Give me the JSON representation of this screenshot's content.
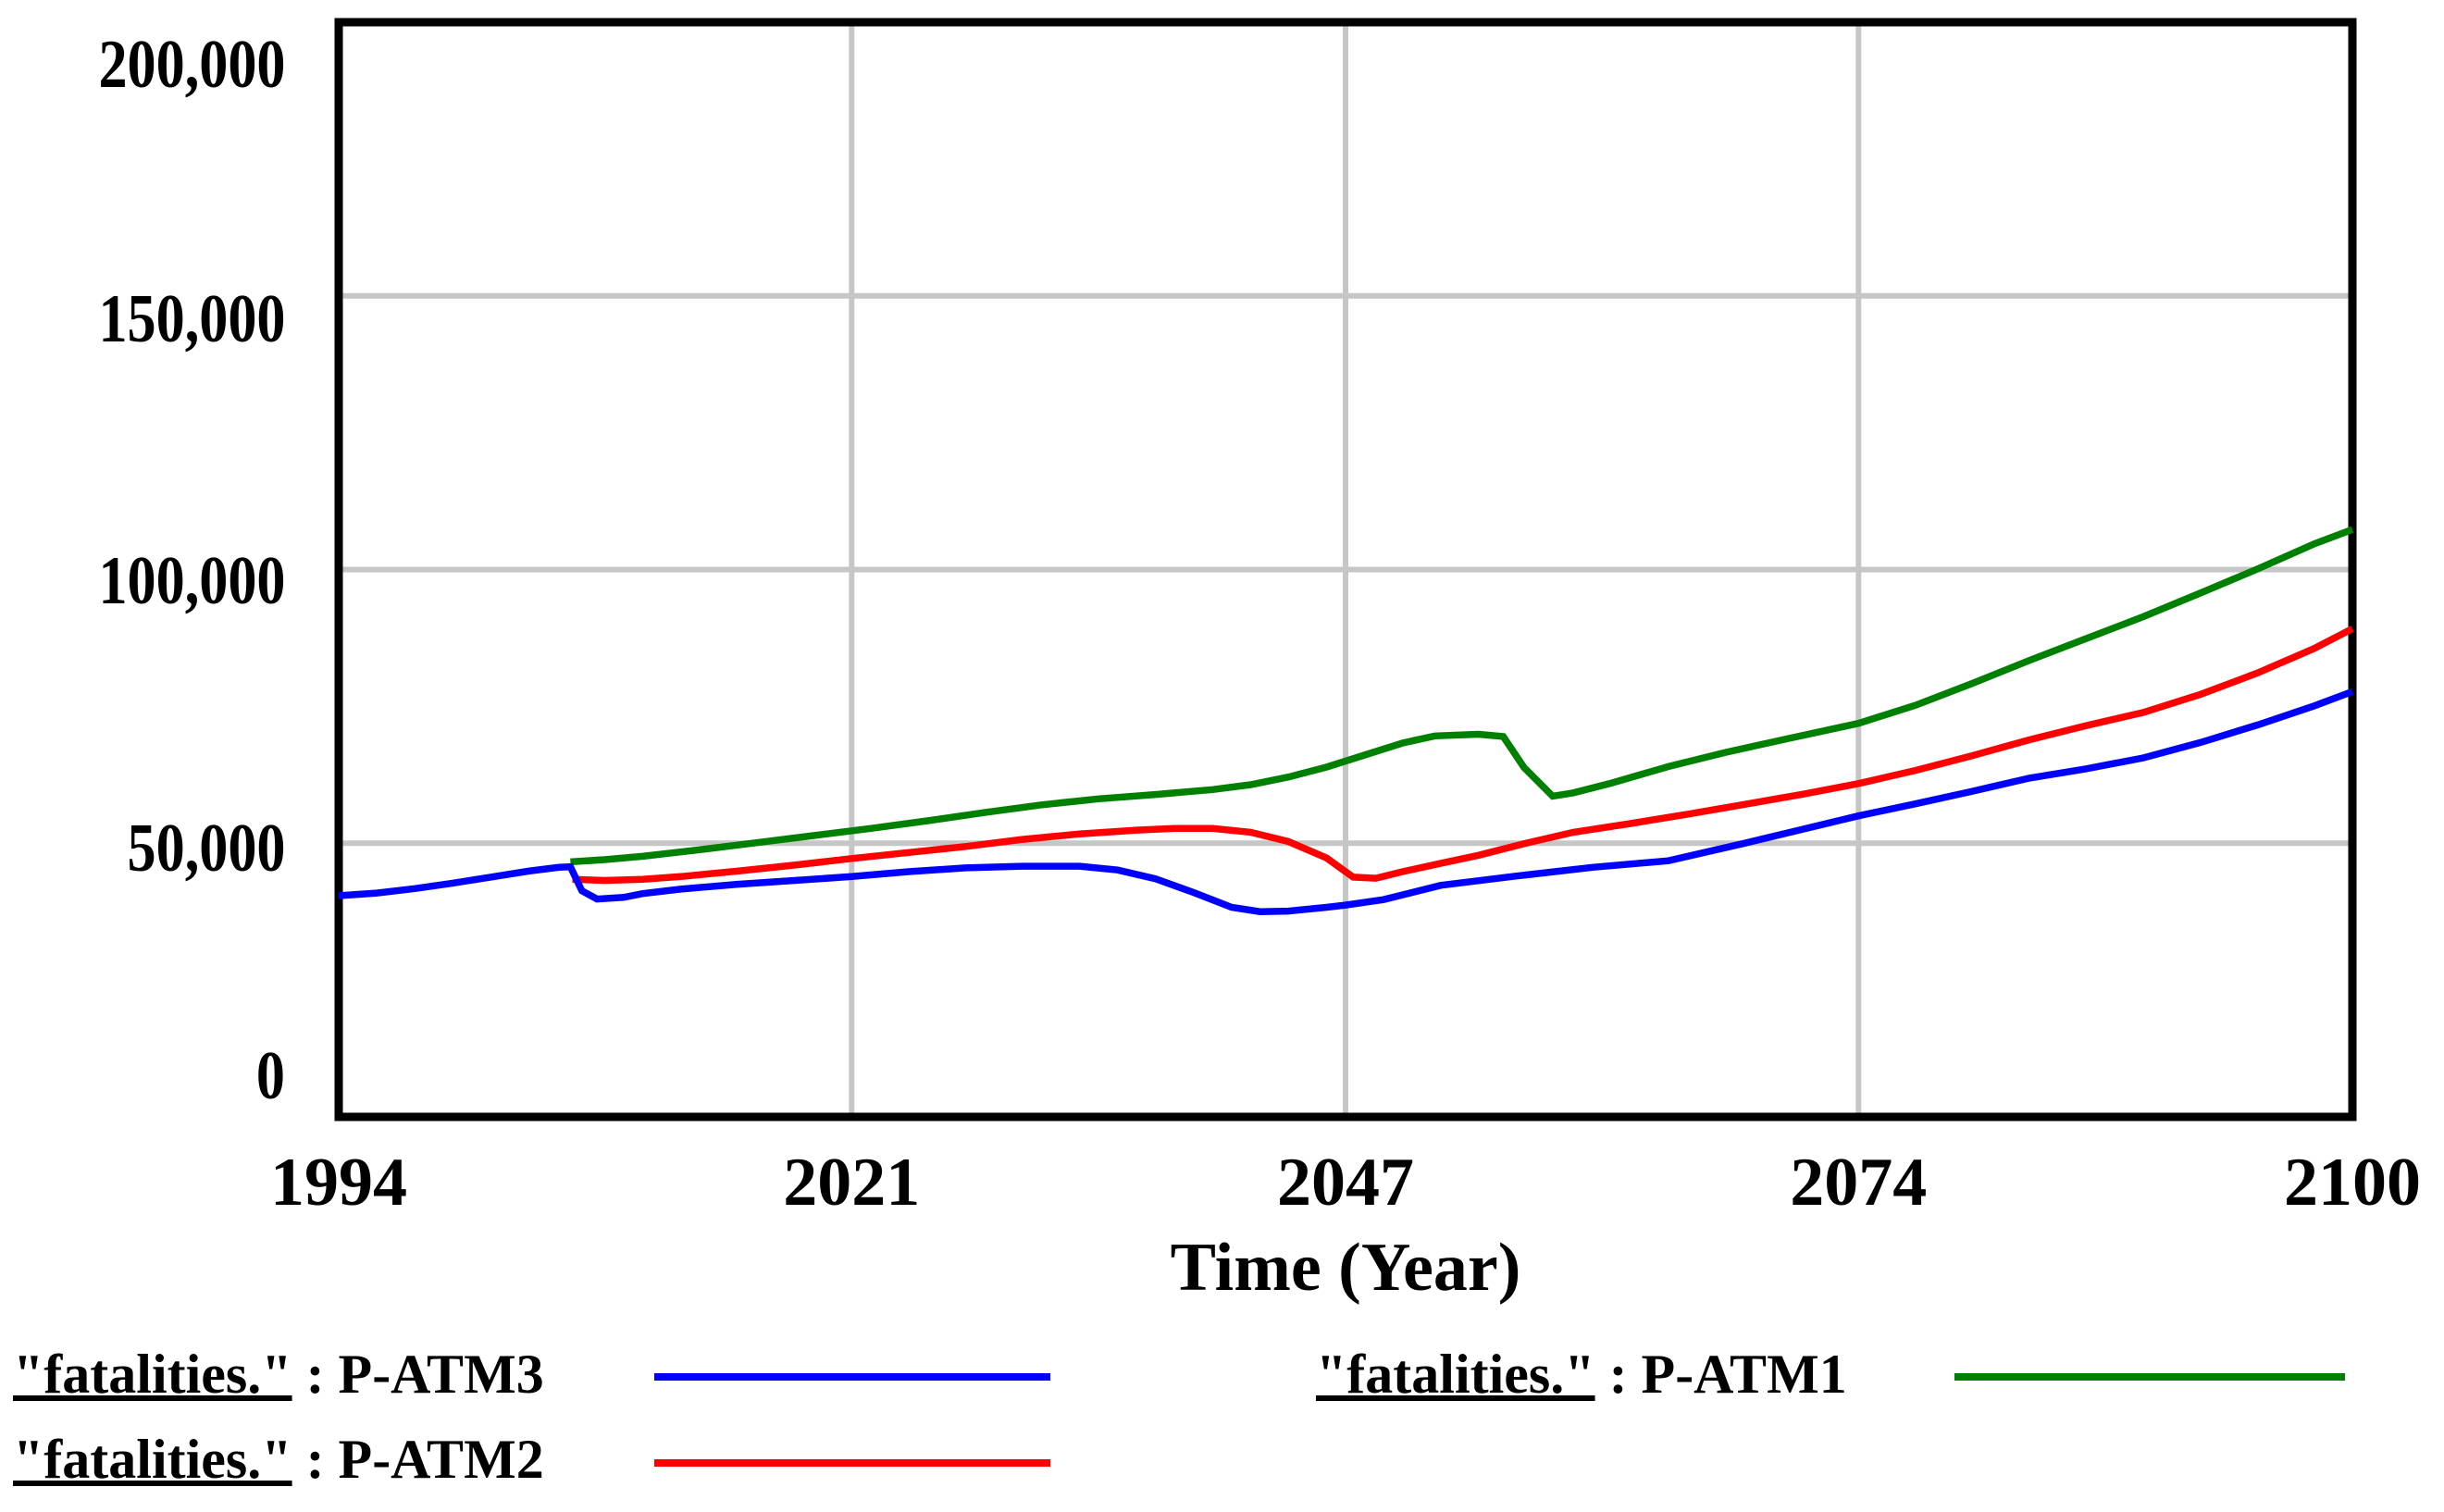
{
  "chart_data": {
    "type": "line",
    "title": "",
    "xlabel": "Time (Year)",
    "ylabel": "",
    "grid": true,
    "legend_position": "below",
    "background": "#ffffff",
    "gridline_color": "#c6c6c6",
    "border_color": "#000000",
    "x_axis": {
      "min": 1994,
      "max": 2100,
      "tick_years": [
        1994,
        2021,
        2047,
        2074,
        2100
      ],
      "tick_labels": [
        "1994",
        "2021",
        "2047",
        "2074",
        "2100"
      ],
      "gridline_years": [
        2021,
        2047,
        2074
      ]
    },
    "y_axis": {
      "min": 0,
      "max": 200000,
      "tick_values": [
        200000,
        150000,
        100000,
        50000,
        0
      ],
      "tick_labels": [
        "200,000",
        "150,000",
        "100,000",
        "50,000",
        "0"
      ],
      "gridline_values": [
        150000,
        100000,
        50000
      ]
    },
    "series": [
      {
        "name": "\"fatalities.\" : P-ATM1",
        "run": "P-ATM1",
        "color": "#008000",
        "points": [
          [
            2006.2,
            46600
          ],
          [
            2008,
            47000
          ],
          [
            2010,
            47600
          ],
          [
            2013,
            48800
          ],
          [
            2016,
            50100
          ],
          [
            2019,
            51400
          ],
          [
            2022,
            52700
          ],
          [
            2025,
            54100
          ],
          [
            2028,
            55600
          ],
          [
            2031,
            57000
          ],
          [
            2034,
            58100
          ],
          [
            2037,
            58900
          ],
          [
            2040,
            59800
          ],
          [
            2042,
            60700
          ],
          [
            2044,
            62100
          ],
          [
            2046,
            63900
          ],
          [
            2048,
            66100
          ],
          [
            2050,
            68300
          ],
          [
            2051.7,
            69600
          ],
          [
            2054,
            69900
          ],
          [
            2055.3,
            69500
          ],
          [
            2056.4,
            63800
          ],
          [
            2057.9,
            58600
          ],
          [
            2059,
            59200
          ],
          [
            2061,
            61000
          ],
          [
            2064,
            64000
          ],
          [
            2067,
            66600
          ],
          [
            2070,
            68900
          ],
          [
            2074,
            71900
          ],
          [
            2077,
            75200
          ],
          [
            2080,
            79200
          ],
          [
            2083,
            83400
          ],
          [
            2086,
            87400
          ],
          [
            2089,
            91400
          ],
          [
            2092,
            95700
          ],
          [
            2095,
            100100
          ],
          [
            2098,
            104700
          ],
          [
            2100,
            107300
          ]
        ]
      },
      {
        "name": "\"fatalities.\" : P-ATM2",
        "run": "P-ATM2",
        "color": "#ff0000",
        "points": [
          [
            2006.3,
            43400
          ],
          [
            2008,
            43200
          ],
          [
            2010,
            43400
          ],
          [
            2012,
            43900
          ],
          [
            2015,
            44900
          ],
          [
            2018,
            46000
          ],
          [
            2021,
            47200
          ],
          [
            2024,
            48300
          ],
          [
            2027,
            49400
          ],
          [
            2030,
            50700
          ],
          [
            2033,
            51700
          ],
          [
            2036,
            52400
          ],
          [
            2038,
            52700
          ],
          [
            2040,
            52700
          ],
          [
            2042,
            52000
          ],
          [
            2044,
            50300
          ],
          [
            2046,
            47300
          ],
          [
            2047.4,
            43800
          ],
          [
            2048.6,
            43600
          ],
          [
            2050,
            44800
          ],
          [
            2052,
            46300
          ],
          [
            2054,
            47800
          ],
          [
            2056.5,
            50000
          ],
          [
            2059,
            52000
          ],
          [
            2062,
            53600
          ],
          [
            2065,
            55300
          ],
          [
            2068,
            57100
          ],
          [
            2071,
            58900
          ],
          [
            2074,
            60900
          ],
          [
            2077,
            63300
          ],
          [
            2080,
            66000
          ],
          [
            2083,
            68900
          ],
          [
            2086,
            71500
          ],
          [
            2089,
            73900
          ],
          [
            2092,
            77200
          ],
          [
            2095,
            81100
          ],
          [
            2098,
            85600
          ],
          [
            2100,
            89200
          ]
        ]
      },
      {
        "name": "\"fatalities.\" : P-ATM3",
        "run": "P-ATM3",
        "color": "#0000ff",
        "points": [
          [
            1994,
            40400
          ],
          [
            1996,
            40900
          ],
          [
            1998,
            41700
          ],
          [
            2000,
            42700
          ],
          [
            2002,
            43800
          ],
          [
            2004,
            44900
          ],
          [
            2005.6,
            45600
          ],
          [
            2006.2,
            45700
          ],
          [
            2006.8,
            41300
          ],
          [
            2007.6,
            39800
          ],
          [
            2009,
            40100
          ],
          [
            2010,
            40800
          ],
          [
            2012,
            41600
          ],
          [
            2015,
            42500
          ],
          [
            2018,
            43200
          ],
          [
            2021,
            43900
          ],
          [
            2024,
            44800
          ],
          [
            2027,
            45500
          ],
          [
            2030,
            45800
          ],
          [
            2033,
            45800
          ],
          [
            2035,
            45100
          ],
          [
            2037,
            43500
          ],
          [
            2039,
            41000
          ],
          [
            2041,
            38300
          ],
          [
            2042.5,
            37500
          ],
          [
            2044,
            37600
          ],
          [
            2046,
            38300
          ],
          [
            2047,
            38700
          ],
          [
            2049,
            39700
          ],
          [
            2052,
            42300
          ],
          [
            2056,
            44000
          ],
          [
            2060,
            45600
          ],
          [
            2064,
            46800
          ],
          [
            2068,
            50000
          ],
          [
            2071,
            52500
          ],
          [
            2074,
            55000
          ],
          [
            2077,
            57200
          ],
          [
            2080,
            59500
          ],
          [
            2083,
            61900
          ],
          [
            2086,
            63600
          ],
          [
            2089,
            65600
          ],
          [
            2092,
            68400
          ],
          [
            2095,
            71600
          ],
          [
            2098,
            75100
          ],
          [
            2100,
            77700
          ]
        ]
      }
    ]
  },
  "legend": {
    "rows": [
      {
        "var_label": "\"fatalities.\"",
        "rest_label": " : P-ATM3",
        "series_index": 2
      },
      {
        "var_label": "\"fatalities.\"",
        "rest_label": " : P-ATM2",
        "series_index": 1
      },
      {
        "var_label": "\"fatalities.\"",
        "rest_label": " : P-ATM1",
        "series_index": 0
      }
    ]
  }
}
